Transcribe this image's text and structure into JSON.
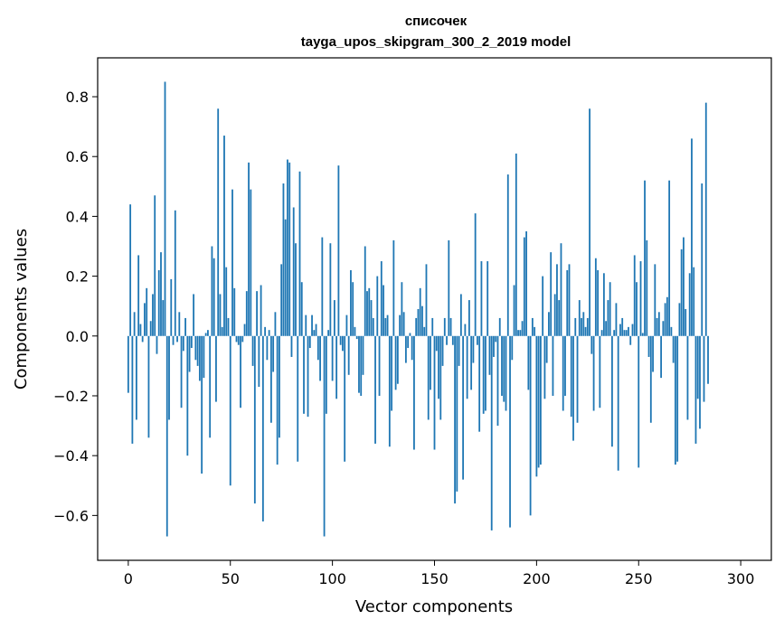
{
  "chart_data": {
    "type": "bar",
    "title_lines": [
      "списочек",
      "tayga_upos_skipgram_300_2_2019 model"
    ],
    "xlabel": "Vector components",
    "ylabel": "Components values",
    "xlim": [
      -15,
      315
    ],
    "ylim": [
      -0.75,
      0.93
    ],
    "xticks": [
      0,
      50,
      100,
      150,
      200,
      250,
      300
    ],
    "xtick_labels": [
      "0",
      "50",
      "100",
      "150",
      "200",
      "250",
      "300"
    ],
    "yticks": [
      -0.6,
      -0.4,
      -0.2,
      0.0,
      0.2,
      0.4,
      0.6,
      0.8
    ],
    "ytick_labels": [
      "−0.6",
      "−0.4",
      "−0.2",
      "0.0",
      "0.2",
      "0.4",
      "0.6",
      "0.8"
    ],
    "bar_color": "#1f77b4",
    "grid": false,
    "values": [
      -0.19,
      0.44,
      -0.36,
      0.08,
      -0.28,
      0.27,
      0.04,
      -0.02,
      0.11,
      0.16,
      -0.34,
      0.05,
      0.14,
      0.47,
      -0.06,
      0.22,
      0.28,
      0.12,
      0.85,
      -0.67,
      -0.28,
      0.19,
      -0.03,
      0.42,
      -0.02,
      0.08,
      -0.24,
      -0.05,
      0.06,
      -0.4,
      -0.12,
      -0.04,
      0.14,
      -0.08,
      -0.1,
      -0.15,
      -0.46,
      -0.14,
      0.01,
      0.02,
      -0.34,
      0.3,
      0.26,
      -0.22,
      0.76,
      0.14,
      0.03,
      0.67,
      0.23,
      0.06,
      -0.5,
      0.49,
      0.16,
      -0.02,
      -0.03,
      -0.24,
      -0.02,
      0.04,
      0.15,
      0.58,
      0.49,
      -0.1,
      -0.56,
      0.15,
      -0.17,
      0.17,
      -0.62,
      0.03,
      -0.08,
      0.02,
      -0.29,
      -0.12,
      0.08,
      -0.43,
      -0.34,
      0.24,
      0.51,
      0.39,
      0.59,
      0.58,
      -0.07,
      0.43,
      0.31,
      -0.42,
      0.55,
      0.18,
      -0.26,
      0.07,
      -0.27,
      -0.04,
      0.07,
      0.02,
      0.04,
      -0.08,
      -0.15,
      0.33,
      -0.67,
      -0.26,
      0.02,
      0.31,
      -0.15,
      0.12,
      -0.21,
      0.57,
      -0.03,
      -0.05,
      -0.42,
      0.07,
      -0.13,
      0.22,
      0.18,
      0.03,
      -0.01,
      -0.19,
      -0.2,
      -0.13,
      0.3,
      0.15,
      0.16,
      0.12,
      0.06,
      -0.36,
      0.2,
      -0.2,
      0.25,
      0.17,
      0.06,
      0.07,
      -0.37,
      -0.25,
      0.32,
      -0.18,
      -0.16,
      0.07,
      0.18,
      0.08,
      -0.09,
      -0.04,
      0.01,
      -0.08,
      -0.38,
      0.06,
      0.09,
      0.16,
      0.1,
      0.03,
      0.24,
      -0.28,
      -0.18,
      0.06,
      -0.38,
      -0.05,
      -0.21,
      -0.28,
      -0.1,
      0.06,
      -0.03,
      0.32,
      0.06,
      -0.03,
      -0.56,
      -0.52,
      -0.1,
      0.14,
      -0.48,
      0.04,
      -0.21,
      0.12,
      -0.18,
      -0.09,
      0.41,
      -0.03,
      -0.32,
      0.25,
      -0.26,
      -0.25,
      0.25,
      -0.13,
      -0.65,
      -0.07,
      -0.02,
      -0.3,
      0.06,
      -0.2,
      -0.22,
      -0.25,
      0.54,
      -0.64,
      -0.08,
      0.17,
      0.61,
      0.02,
      0.02,
      0.05,
      0.33,
      0.35,
      -0.18,
      -0.6,
      0.06,
      0.03,
      -0.47,
      -0.44,
      -0.43,
      0.2,
      -0.21,
      -0.09,
      0.08,
      0.28,
      -0.2,
      0.14,
      0.24,
      0.12,
      0.31,
      -0.25,
      -0.2,
      0.22,
      0.24,
      -0.27,
      -0.35,
      0.06,
      -0.29,
      0.12,
      0.06,
      0.08,
      0.03,
      0.06,
      0.76,
      -0.06,
      -0.25,
      0.26,
      0.22,
      -0.24,
      0.02,
      0.21,
      0.05,
      0.12,
      0.18,
      -0.37,
      0.02,
      0.11,
      -0.45,
      0.04,
      0.06,
      0.02,
      0.02,
      0.03,
      -0.03,
      0.04,
      0.27,
      0.18,
      -0.44,
      0.25,
      0.01,
      0.52,
      0.32,
      -0.07,
      -0.29,
      -0.12,
      0.24,
      0.06,
      0.08,
      -0.14,
      0.05,
      0.11,
      0.13,
      0.52,
      0.03,
      -0.09,
      -0.43,
      -0.42,
      0.11,
      0.29,
      0.33,
      0.09,
      -0.28,
      0.21,
      0.66,
      0.23,
      -0.36,
      -0.21,
      -0.31,
      0.51,
      -0.22,
      0.78,
      -0.16
    ]
  }
}
